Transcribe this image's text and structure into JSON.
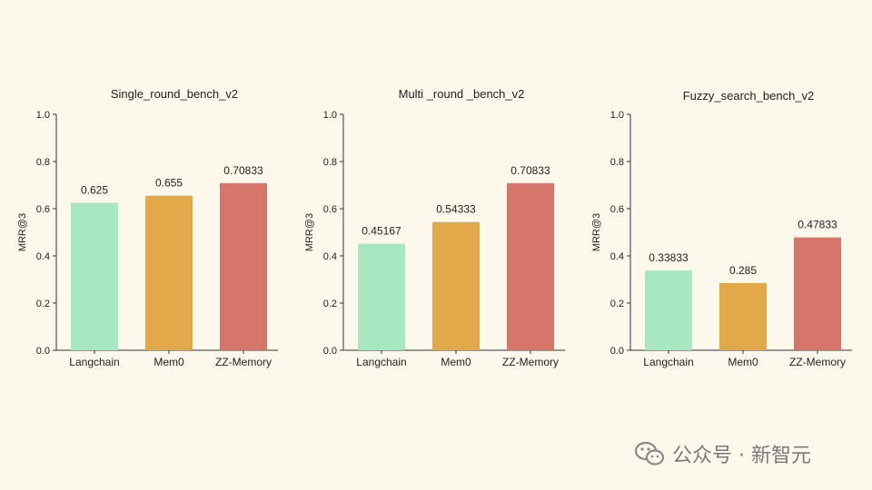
{
  "chart_data": [
    {
      "type": "bar",
      "title": "Single_round_bench_v2",
      "ylabel": "MRR@3",
      "ylim": [
        0,
        1.0
      ],
      "yticks": [
        "0.0",
        "0.2",
        "0.4",
        "0.6",
        "0.8",
        "1.0"
      ],
      "categories": [
        "Langchain",
        "Mem0",
        "ZZ-Memory"
      ],
      "values": [
        0.625,
        0.655,
        0.70833
      ],
      "value_labels": [
        "0.625",
        "0.655",
        "0.70833"
      ],
      "colors": [
        "#a8e8c0",
        "#e2a94a",
        "#d6756a"
      ]
    },
    {
      "type": "bar",
      "title": "Multi _round _bench_v2",
      "ylabel": "MRR@3",
      "ylim": [
        0,
        1.0
      ],
      "yticks": [
        "0.0",
        "0.2",
        "0.4",
        "0.6",
        "0.8",
        "1.0"
      ],
      "categories": [
        "Langchain",
        "Mem0",
        "ZZ-Memory"
      ],
      "values": [
        0.45167,
        0.54333,
        0.70833
      ],
      "value_labels": [
        "0.45167",
        "0.54333",
        "0.70833"
      ],
      "colors": [
        "#a8e8c0",
        "#e2a94a",
        "#d6756a"
      ]
    },
    {
      "type": "bar",
      "title": "Fuzzy_search_bench_v2",
      "ylabel": "MRR@3",
      "ylim": [
        0,
        1.0
      ],
      "yticks": [
        "0.0",
        "0.2",
        "0.4",
        "0.6",
        "0.8",
        "1.0"
      ],
      "categories": [
        "Langchain",
        "Mem0",
        "ZZ-Memory"
      ],
      "values": [
        0.33833,
        0.285,
        0.47833
      ],
      "value_labels": [
        "0.33833",
        "0.285",
        "0.47833"
      ],
      "colors": [
        "#a8e8c0",
        "#e2a94a",
        "#d6756a"
      ]
    }
  ],
  "watermark": {
    "icon": "wechat-icon",
    "text": "公众号 · 新智元"
  }
}
